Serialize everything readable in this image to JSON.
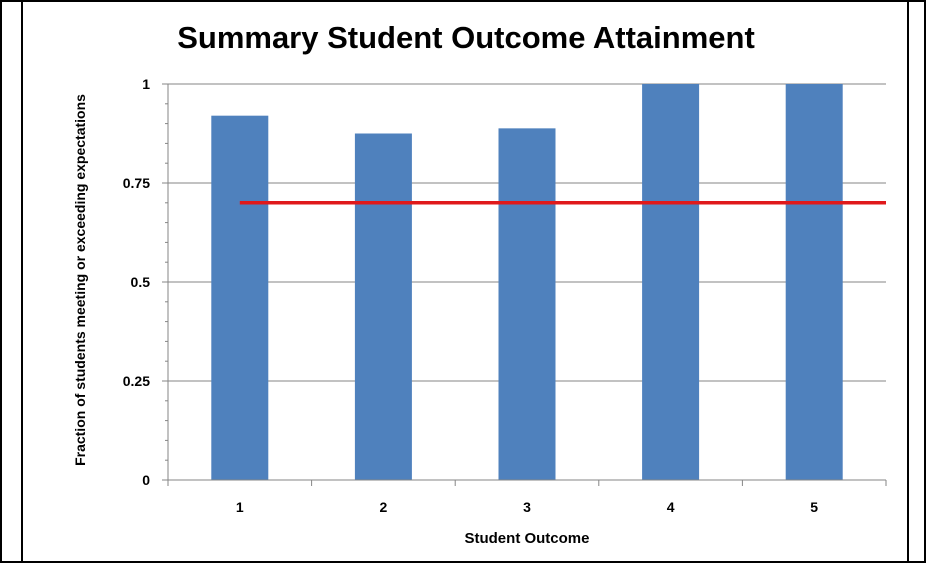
{
  "chart_data": {
    "type": "bar",
    "title": "Summary Student Outcome Attainment",
    "xlabel": "Student Outcome",
    "ylabel": "Fraction of students meeting or exceeding expectations",
    "categories": [
      "1",
      "2",
      "3",
      "4",
      "5"
    ],
    "values": [
      0.92,
      0.875,
      0.888,
      1.0,
      1.0
    ],
    "ylim": [
      0,
      1
    ],
    "yticks": [
      0,
      0.25,
      0.5,
      0.75,
      1
    ],
    "ytick_labels": [
      "0",
      "0.25",
      "0.5",
      "0.75",
      "1"
    ],
    "grid": true,
    "legend": "none",
    "reference_line": {
      "y": 0.7
    },
    "colors": {
      "bar": "#4f81bd",
      "reference_line": "#e0191b",
      "gridline": "#868686",
      "frame_border": "#000000"
    }
  }
}
